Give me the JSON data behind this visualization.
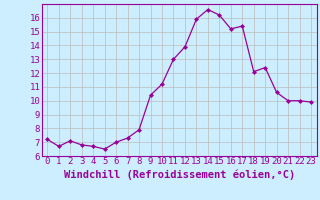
{
  "x": [
    0,
    1,
    2,
    3,
    4,
    5,
    6,
    7,
    8,
    9,
    10,
    11,
    12,
    13,
    14,
    15,
    16,
    17,
    18,
    19,
    20,
    21,
    22,
    23
  ],
  "y": [
    7.2,
    6.7,
    7.1,
    6.8,
    6.7,
    6.5,
    7.0,
    7.3,
    7.9,
    10.4,
    11.2,
    13.0,
    13.9,
    15.9,
    16.6,
    16.2,
    15.2,
    15.4,
    12.1,
    12.4,
    10.6,
    10.0,
    10.0,
    9.9
  ],
  "xlim": [
    -0.5,
    23.5
  ],
  "ylim": [
    6,
    17
  ],
  "yticks": [
    6,
    7,
    8,
    9,
    10,
    11,
    12,
    13,
    14,
    15,
    16
  ],
  "xticks": [
    0,
    1,
    2,
    3,
    4,
    5,
    6,
    7,
    8,
    9,
    10,
    11,
    12,
    13,
    14,
    15,
    16,
    17,
    18,
    19,
    20,
    21,
    22,
    23
  ],
  "xlabel": "Windchill (Refroidissement éolien,°C)",
  "line_color": "#990099",
  "marker": "D",
  "marker_size": 2,
  "bg_color": "#cceeff",
  "grid_color": "#bbbbbb",
  "tick_label_fontsize": 6.5,
  "xlabel_fontsize": 7.5
}
